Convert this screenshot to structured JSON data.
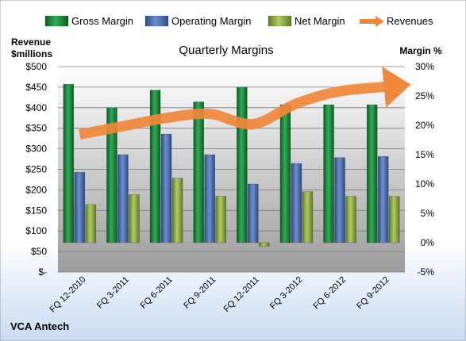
{
  "chart_data": {
    "type": "bar",
    "title": "Quarterly Margins",
    "company": "VCA Antech",
    "left_axis": {
      "label_line1": "Revenue",
      "label_line2": "$millions",
      "min": 0,
      "max": 500,
      "step": 50,
      "ticks": [
        "$-",
        "$50",
        "$100",
        "$150",
        "$200",
        "$250",
        "$300",
        "$350",
        "$400",
        "$450",
        "$500"
      ]
    },
    "right_axis": {
      "label": "Margin %",
      "min": -5,
      "max": 30,
      "step": 5,
      "ticks": [
        "-5%",
        "0%",
        "5%",
        "10%",
        "15%",
        "20%",
        "25%",
        "30%"
      ]
    },
    "categories": [
      "FQ 12-2010",
      "FQ 3-2011",
      "FQ 6-2011",
      "FQ 9-2011",
      "FQ 12-2011",
      "FQ 3-2012",
      "FQ 6-2012",
      "FQ 9-2012"
    ],
    "series": [
      {
        "name": "Gross Margin",
        "axis": "right",
        "color": "#1e8a3c",
        "values": [
          27,
          23,
          26,
          24,
          26.5,
          23.5,
          23.5,
          23.5
        ]
      },
      {
        "name": "Operating Margin",
        "axis": "right",
        "color": "#4a6fb5",
        "values": [
          12,
          15,
          18.5,
          15,
          10,
          13.5,
          14.5,
          14.7
        ]
      },
      {
        "name": "Net Margin",
        "axis": "right",
        "color": "#8fae3e",
        "values": [
          6.5,
          8.2,
          11,
          7.9,
          -0.6,
          8.7,
          7.9,
          7.9
        ]
      },
      {
        "name": "Revenues",
        "axis": "left",
        "type": "line",
        "color": "#f0883a",
        "values": [
          335,
          355,
          375,
          385,
          360,
          410,
          440,
          450
        ]
      }
    ],
    "legend_position": "top",
    "grid": true
  }
}
